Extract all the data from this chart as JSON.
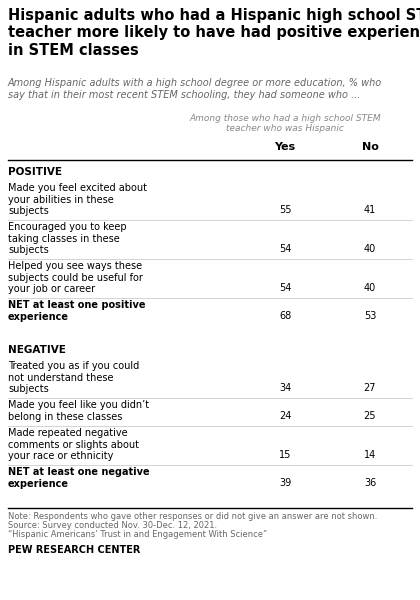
{
  "title": "Hispanic adults who had a Hispanic high school STEM\nteacher more likely to have had positive experiences\nin STEM classes",
  "subtitle": "Among Hispanic adults with a high school degree or more education, % who\nsay that in their most recent STEM schooling, they had someone who ...",
  "col_header_italic": "Among those who had a high school STEM\nteacher who was Hispanic",
  "col_yes": "Yes",
  "col_no": "No",
  "sections": [
    {
      "section_label": "POSITIVE",
      "rows": [
        {
          "label": "Made you feel excited about\nyour abilities in these\nsubjects",
          "yes": 55,
          "no": 41,
          "bold": false,
          "nlines": 3
        },
        {
          "label": "Encouraged you to keep\ntaking classes in these\nsubjects",
          "yes": 54,
          "no": 40,
          "bold": false,
          "nlines": 3
        },
        {
          "label": "Helped you see ways these\nsubjects could be useful for\nyour job or career",
          "yes": 54,
          "no": 40,
          "bold": false,
          "nlines": 3
        },
        {
          "label": "NET at least one positive\nexperience",
          "yes": 68,
          "no": 53,
          "bold": true,
          "nlines": 2
        }
      ]
    },
    {
      "section_label": "NEGATIVE",
      "rows": [
        {
          "label": "Treated you as if you could\nnot understand these\nsubjects",
          "yes": 34,
          "no": 27,
          "bold": false,
          "nlines": 3
        },
        {
          "label": "Made you feel like you didn’t\nbelong in these classes",
          "yes": 24,
          "no": 25,
          "bold": false,
          "nlines": 2
        },
        {
          "label": "Made repeated negative\ncomments or slights about\nyour race or ethnicity",
          "yes": 15,
          "no": 14,
          "bold": false,
          "nlines": 3
        },
        {
          "label": "NET at least one negative\nexperience",
          "yes": 39,
          "no": 36,
          "bold": true,
          "nlines": 2
        }
      ]
    }
  ],
  "note_lines": [
    "Note: Respondents who gave other responses or did not give an answer are not shown.",
    "Source: Survey conducted Nov. 30-Dec. 12, 2021.",
    "“Hispanic Americans’ Trust in and Engagement With Science”"
  ],
  "footer": "PEW RESEARCH CENTER",
  "bg_color": "#ffffff",
  "text_color": "#000000",
  "gray_color": "#666666",
  "light_gray": "#cccccc",
  "italic_color": "#888888"
}
